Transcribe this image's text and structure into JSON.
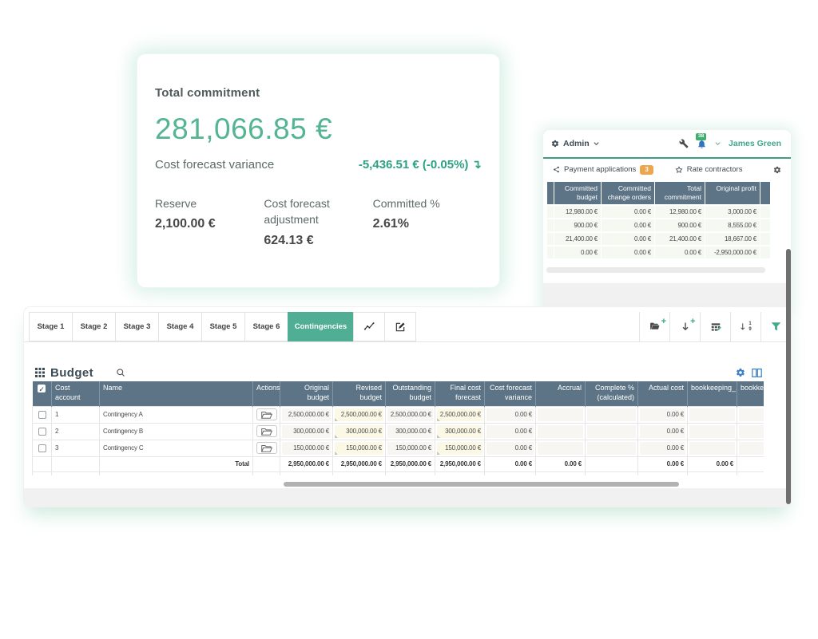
{
  "card": {
    "title": "Total commitment",
    "amount": "281,066.85 €",
    "variance_label": "Cost forecast variance",
    "variance_value": "-5,436.51 € (-0.05%)",
    "variance_arrow": "↴",
    "stats": [
      {
        "label": "Reserve",
        "value": "2,100.00 €"
      },
      {
        "label": "Cost forecast adjustment",
        "value": "624.13 €"
      },
      {
        "label": "Committed %",
        "value": "2.61%"
      }
    ]
  },
  "admin_panel": {
    "menu_label": "Admin",
    "notification_count": "38",
    "user_name": "James Green",
    "tabs": [
      {
        "label": "Payment applications",
        "badge": "3"
      },
      {
        "label": "Rate contractors"
      }
    ],
    "table": {
      "columns": [
        "Committed budget",
        "Committed change orders",
        "Total commitment",
        "Original profit"
      ],
      "rows": [
        [
          "12,980.00 €",
          "0.00 €",
          "12,980.00 €",
          "3,000.00 €"
        ],
        [
          "900.00 €",
          "0.00 €",
          "900.00 €",
          "8,555.00 €"
        ],
        [
          "21,400.00 €",
          "0.00 €",
          "21,400.00 €",
          "18,667.00 €"
        ],
        [
          "0.00 €",
          "0.00 €",
          "0.00 €",
          "-2,950,000.00 €"
        ]
      ]
    }
  },
  "budget_panel": {
    "stage_tabs": [
      "Stage 1",
      "Stage 2",
      "Stage 3",
      "Stage 4",
      "Stage 5",
      "Stage 6"
    ],
    "active_tab": "Contingencies",
    "title": "Budget",
    "table": {
      "select_all_checked": true,
      "columns": [
        {
          "label": "Cost account",
          "align": "left"
        },
        {
          "label": "Name",
          "align": "left"
        },
        {
          "label": "Actions",
          "align": "left"
        },
        {
          "label": "Original budget",
          "align": "right",
          "kind": "ro"
        },
        {
          "label": "Revised budget",
          "align": "right",
          "kind": "ed"
        },
        {
          "label": "Outstanding budget",
          "align": "right",
          "kind": "ro"
        },
        {
          "label": "Final cost forecast",
          "align": "right",
          "kind": "ed"
        },
        {
          "label": "Cost forecast variance",
          "align": "right",
          "kind": "ro"
        },
        {
          "label": "Accrual",
          "align": "right",
          "kind": "ro"
        },
        {
          "label": "Complete % (calculated)",
          "align": "right",
          "kind": "ro"
        },
        {
          "label": "Actual cost",
          "align": "right",
          "kind": "ro"
        },
        {
          "label": "bookkeeping_...",
          "align": "right",
          "kind": "ro"
        },
        {
          "label": "bookkeep",
          "align": "left",
          "kind": "ro"
        }
      ],
      "rows": [
        {
          "account": "1",
          "name": "Contingency A",
          "values": [
            "2,500,000.00 €",
            "2,500,000.00 €",
            "2,500,000.00 €",
            "2,500,000.00 €",
            "0.00 €",
            "",
            "",
            "0.00 €",
            "",
            ""
          ]
        },
        {
          "account": "2",
          "name": "Contingency B",
          "values": [
            "300,000.00 €",
            "300,000.00 €",
            "300,000.00 €",
            "300,000.00 €",
            "0.00 €",
            "",
            "",
            "0.00 €",
            "",
            ""
          ]
        },
        {
          "account": "3",
          "name": "Contingency C",
          "values": [
            "150,000.00 €",
            "150,000.00 €",
            "150,000.00 €",
            "150,000.00 €",
            "0.00 €",
            "",
            "",
            "0.00 €",
            "",
            ""
          ]
        }
      ],
      "total_label": "Total",
      "totals": [
        "2,950,000.00 €",
        "2,950,000.00 €",
        "2,950,000.00 €",
        "2,950,000.00 €",
        "0.00 €",
        "0.00 €",
        "",
        "0.00 €",
        "0.00 €",
        ""
      ]
    }
  },
  "icons": {
    "gear-icon": "settings gear",
    "wrench-icon": "wrench",
    "bell-icon": "notification bell",
    "chevron-down-icon": "caret down",
    "share-icon": "share-alt",
    "star-icon": "rate star",
    "chart-icon": "line chart",
    "edit-icon": "pencil square",
    "folder-plus-icon": "open folder with plus",
    "import-rows-icon": "down arrow with plus",
    "table-edit-icon": "table with pencil",
    "sort-numeric-icon": "down arrow with 1 9",
    "filter-icon": "funnel",
    "grid-icon": "3x3 grid",
    "search-icon": "magnifier",
    "columns-icon": "two columns",
    "folder-open-icon": "open folder button"
  },
  "colors": {
    "accent_green": "#4fae93",
    "header_slate": "#5c7486",
    "badge_orange": "#efa54d",
    "icon_blue": "#3b7fc4",
    "bell_blue": "#2e74bd",
    "badge_green": "#3fae6e"
  }
}
